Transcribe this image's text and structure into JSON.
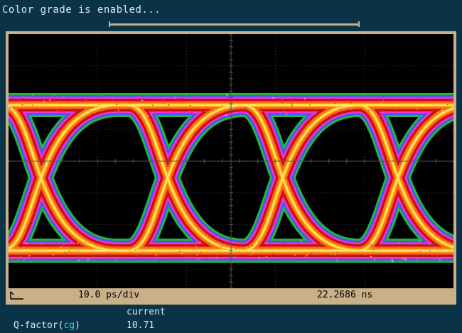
{
  "status": {
    "message": "Color grade is enabled...",
    "progress": 1.0
  },
  "scope": {
    "timebase": "10.0 ps/div",
    "delay": "22.2686 ns",
    "reference_marker_icon": "arrow-left-icon"
  },
  "measurements": {
    "column_header": "current",
    "name": "Q-factor",
    "paren_open": "(",
    "source": "cg",
    "paren_close": ")",
    "value": "10.71"
  },
  "colors": {
    "background": "#0a3348",
    "frame": "#c9b089",
    "text": "#dfe6ea",
    "source_highlight": "#3cd0e6",
    "color_grade": [
      "#23c23a",
      "#3a55ff",
      "#ff2fd2",
      "#c8101a",
      "#ff6a10",
      "#ffb820",
      "#fff070"
    ]
  }
}
